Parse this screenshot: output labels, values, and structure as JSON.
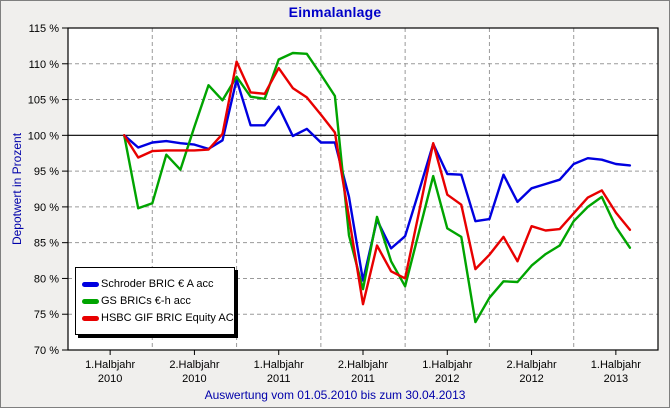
{
  "colors": {
    "background": "#f0efed",
    "plot_bg": "#ffffff",
    "grid": "#9a9a9a",
    "axis": "#000000",
    "title_text": "#0000c8",
    "caption_text": "#0000aa",
    "ylabel_text": "#0000aa"
  },
  "chart_data": {
    "type": "line",
    "title": "Einmalanlage",
    "caption": "Auswertung vom 01.05.2010 bis zum 30.04.2013",
    "xlabel": "",
    "ylabel": "Depotwert in Prozent",
    "ylim": [
      70,
      115
    ],
    "baseline": 100,
    "grid": true,
    "legend_position": "bottom-left",
    "domain_months": 42,
    "data_start_month": 4,
    "gridline_months": [
      6,
      12,
      18,
      24,
      30,
      36
    ],
    "y_ticks": [
      {
        "v": 115,
        "label": "115 %"
      },
      {
        "v": 110,
        "label": "110 %"
      },
      {
        "v": 105,
        "label": "105 %"
      },
      {
        "v": 100,
        "label": "100 %"
      },
      {
        "v": 95,
        "label": "95 %"
      },
      {
        "v": 90,
        "label": "90 %"
      },
      {
        "v": 85,
        "label": "85 %"
      },
      {
        "v": 80,
        "label": "80 %"
      },
      {
        "v": 75,
        "label": "75 %"
      },
      {
        "v": 70,
        "label": "70 %"
      }
    ],
    "x_ticks": [
      {
        "m": 3,
        "line1": "1.Halbjahr",
        "line2": "2010"
      },
      {
        "m": 9,
        "line1": "2.Halbjahr",
        "line2": "2010"
      },
      {
        "m": 15,
        "line1": "1.Halbjahr",
        "line2": "2011"
      },
      {
        "m": 21,
        "line1": "2.Halbjahr",
        "line2": "2011"
      },
      {
        "m": 27,
        "line1": "1.Halbjahr",
        "line2": "2012"
      },
      {
        "m": 33,
        "line1": "2.Halbjahr",
        "line2": "2012"
      },
      {
        "m": 39,
        "line1": "1.Halbjahr",
        "line2": "2013"
      }
    ],
    "x_points_note": "37 points: value 100 on 01.05.2010, then monthly values to 30.04.2013",
    "series": [
      {
        "name": "Schroder BRIC € A acc",
        "color": "#0000e0",
        "values": [
          100,
          98.3,
          99.0,
          99.2,
          98.9,
          98.7,
          98.1,
          99.3,
          107.8,
          101.4,
          101.4,
          104.0,
          99.9,
          100.9,
          99.0,
          99.0,
          91.4,
          79.7,
          88.2,
          84.2,
          85.9,
          92.3,
          98.8,
          94.6,
          94.5,
          88.0,
          88.3,
          94.5,
          90.7,
          92.6,
          93.2,
          93.8,
          96.0,
          96.8,
          96.6,
          96.0,
          95.8
        ]
      },
      {
        "name": "GS BRICs €-h acc",
        "color": "#00a400",
        "values": [
          100,
          89.8,
          90.5,
          97.3,
          95.2,
          101.2,
          107.0,
          104.9,
          108.2,
          105.4,
          105.1,
          110.6,
          111.5,
          111.4,
          108.5,
          105.5,
          86.0,
          78.5,
          88.6,
          82.4,
          78.9,
          86.6,
          94.3,
          87.0,
          85.8,
          73.9,
          77.3,
          79.6,
          79.5,
          81.8,
          83.4,
          84.6,
          88.0,
          90.0,
          91.4,
          87.2,
          84.3
        ]
      },
      {
        "name": "HSBC GIF BRIC Equity AC",
        "color": "#e80000",
        "values": [
          100,
          96.9,
          97.8,
          97.9,
          97.9,
          97.9,
          98.0,
          100.2,
          110.3,
          106.0,
          105.8,
          109.4,
          106.6,
          105.3,
          102.9,
          100.4,
          88.5,
          76.4,
          84.6,
          81.0,
          80.0,
          89.4,
          98.9,
          91.7,
          90.3,
          81.3,
          83.3,
          85.8,
          82.4,
          87.3,
          86.7,
          86.9,
          89.1,
          91.3,
          92.3,
          89.2,
          86.8
        ]
      }
    ]
  }
}
